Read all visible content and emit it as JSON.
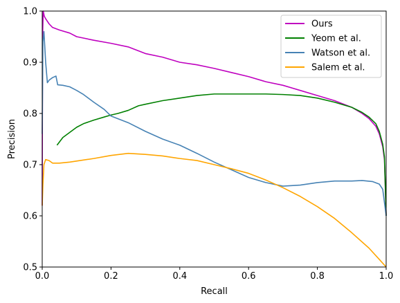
{
  "chart_data": {
    "type": "line",
    "xlabel": "Recall",
    "ylabel": "Precision",
    "xlim": [
      0,
      1
    ],
    "ylim": [
      0.5,
      1.0
    ],
    "xticks": [
      "0.0",
      "0.2",
      "0.4",
      "0.6",
      "0.8",
      "1.0"
    ],
    "yticks": [
      "0.5",
      "0.6",
      "0.7",
      "0.8",
      "0.9",
      "1.0"
    ],
    "grid": false,
    "legend_position": "top-right",
    "series": [
      {
        "name": "Ours",
        "color": "#bf00bf",
        "points": [
          [
            0.0,
            0.62
          ],
          [
            0.001,
            0.95
          ],
          [
            0.003,
            1.0
          ],
          [
            0.006,
            0.99
          ],
          [
            0.01,
            0.985
          ],
          [
            0.02,
            0.975
          ],
          [
            0.03,
            0.968
          ],
          [
            0.05,
            0.963
          ],
          [
            0.08,
            0.957
          ],
          [
            0.1,
            0.95
          ],
          [
            0.15,
            0.943
          ],
          [
            0.2,
            0.937
          ],
          [
            0.25,
            0.93
          ],
          [
            0.3,
            0.917
          ],
          [
            0.35,
            0.91
          ],
          [
            0.4,
            0.9
          ],
          [
            0.45,
            0.895
          ],
          [
            0.5,
            0.888
          ],
          [
            0.55,
            0.88
          ],
          [
            0.6,
            0.872
          ],
          [
            0.65,
            0.862
          ],
          [
            0.7,
            0.855
          ],
          [
            0.75,
            0.845
          ],
          [
            0.8,
            0.835
          ],
          [
            0.85,
            0.825
          ],
          [
            0.9,
            0.812
          ],
          [
            0.93,
            0.8
          ],
          [
            0.95,
            0.79
          ],
          [
            0.97,
            0.775
          ],
          [
            0.98,
            0.76
          ],
          [
            0.99,
            0.735
          ],
          [
            0.995,
            0.71
          ],
          [
            1.0,
            0.6
          ]
        ]
      },
      {
        "name": "Yeom et al.",
        "color": "#008000",
        "points": [
          [
            0.043,
            0.738
          ],
          [
            0.06,
            0.753
          ],
          [
            0.08,
            0.763
          ],
          [
            0.1,
            0.773
          ],
          [
            0.12,
            0.78
          ],
          [
            0.15,
            0.787
          ],
          [
            0.18,
            0.793
          ],
          [
            0.2,
            0.797
          ],
          [
            0.22,
            0.8
          ],
          [
            0.25,
            0.806
          ],
          [
            0.28,
            0.815
          ],
          [
            0.3,
            0.818
          ],
          [
            0.35,
            0.825
          ],
          [
            0.4,
            0.83
          ],
          [
            0.45,
            0.835
          ],
          [
            0.5,
            0.838
          ],
          [
            0.55,
            0.838
          ],
          [
            0.6,
            0.838
          ],
          [
            0.65,
            0.838
          ],
          [
            0.7,
            0.837
          ],
          [
            0.75,
            0.835
          ],
          [
            0.8,
            0.83
          ],
          [
            0.85,
            0.822
          ],
          [
            0.9,
            0.812
          ],
          [
            0.93,
            0.802
          ],
          [
            0.95,
            0.793
          ],
          [
            0.97,
            0.78
          ],
          [
            0.98,
            0.765
          ],
          [
            0.99,
            0.74
          ],
          [
            0.995,
            0.715
          ],
          [
            1.0,
            0.6
          ]
        ]
      },
      {
        "name": "Watson et al.",
        "color": "#4682b4",
        "points": [
          [
            0.0,
            0.76
          ],
          [
            0.002,
            0.94
          ],
          [
            0.005,
            0.96
          ],
          [
            0.01,
            0.9
          ],
          [
            0.015,
            0.86
          ],
          [
            0.02,
            0.865
          ],
          [
            0.03,
            0.87
          ],
          [
            0.04,
            0.873
          ],
          [
            0.045,
            0.856
          ],
          [
            0.06,
            0.855
          ],
          [
            0.08,
            0.852
          ],
          [
            0.1,
            0.845
          ],
          [
            0.12,
            0.837
          ],
          [
            0.15,
            0.822
          ],
          [
            0.18,
            0.808
          ],
          [
            0.2,
            0.795
          ],
          [
            0.25,
            0.782
          ],
          [
            0.3,
            0.765
          ],
          [
            0.35,
            0.75
          ],
          [
            0.4,
            0.738
          ],
          [
            0.45,
            0.722
          ],
          [
            0.5,
            0.705
          ],
          [
            0.55,
            0.69
          ],
          [
            0.6,
            0.675
          ],
          [
            0.65,
            0.665
          ],
          [
            0.7,
            0.658
          ],
          [
            0.75,
            0.66
          ],
          [
            0.8,
            0.665
          ],
          [
            0.85,
            0.668
          ],
          [
            0.9,
            0.668
          ],
          [
            0.93,
            0.669
          ],
          [
            0.96,
            0.667
          ],
          [
            0.98,
            0.662
          ],
          [
            0.99,
            0.652
          ],
          [
            1.0,
            0.6
          ]
        ]
      },
      {
        "name": "Salem et al.",
        "color": "#ffa500",
        "points": [
          [
            0.0,
            0.62
          ],
          [
            0.002,
            0.66
          ],
          [
            0.005,
            0.7
          ],
          [
            0.01,
            0.71
          ],
          [
            0.02,
            0.708
          ],
          [
            0.03,
            0.703
          ],
          [
            0.05,
            0.703
          ],
          [
            0.08,
            0.705
          ],
          [
            0.1,
            0.707
          ],
          [
            0.15,
            0.712
          ],
          [
            0.2,
            0.718
          ],
          [
            0.25,
            0.722
          ],
          [
            0.3,
            0.72
          ],
          [
            0.35,
            0.717
          ],
          [
            0.4,
            0.712
          ],
          [
            0.45,
            0.708
          ],
          [
            0.5,
            0.7
          ],
          [
            0.55,
            0.692
          ],
          [
            0.6,
            0.683
          ],
          [
            0.65,
            0.67
          ],
          [
            0.7,
            0.655
          ],
          [
            0.75,
            0.638
          ],
          [
            0.8,
            0.618
          ],
          [
            0.85,
            0.595
          ],
          [
            0.9,
            0.567
          ],
          [
            0.95,
            0.537
          ],
          [
            0.98,
            0.515
          ],
          [
            1.0,
            0.5
          ]
        ]
      }
    ]
  }
}
